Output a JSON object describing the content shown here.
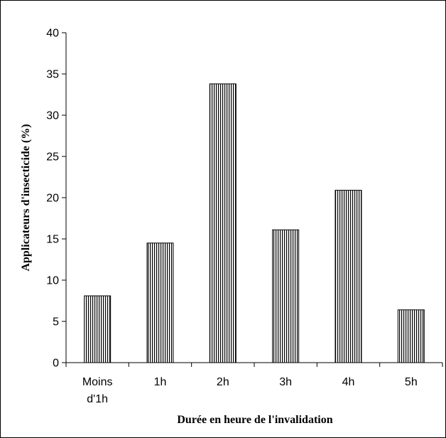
{
  "chart_data": {
    "type": "bar",
    "title": "",
    "xlabel": "Durée en heure de l'invalidation",
    "ylabel": "Applicateurs d'insecticide (%)",
    "categories": [
      [
        "Moins",
        "d'1h"
      ],
      [
        "1h"
      ],
      [
        "2h"
      ],
      [
        "3h"
      ],
      [
        "4h"
      ],
      [
        "5h"
      ]
    ],
    "values": [
      8.1,
      14.5,
      33.8,
      16.1,
      20.9,
      6.4
    ],
    "ylim": [
      0,
      40
    ],
    "yticks": [
      0,
      5,
      10,
      15,
      20,
      25,
      30,
      35,
      40
    ],
    "grid": false,
    "bar_fill": "#ffffff",
    "bar_stripe_color": "#000000"
  }
}
